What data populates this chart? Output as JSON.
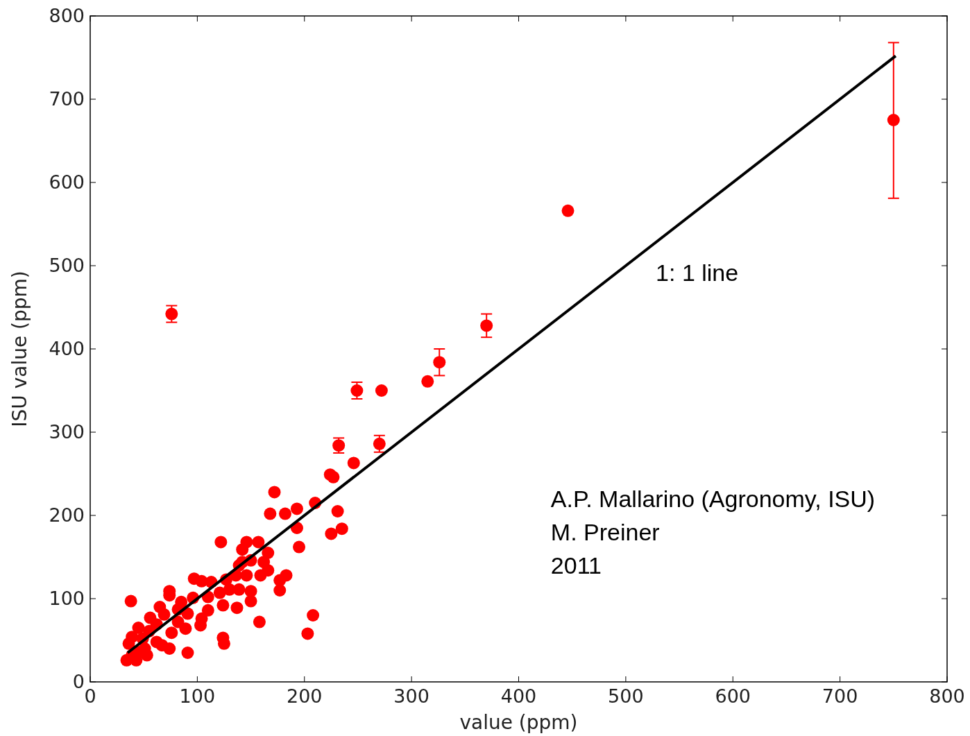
{
  "chart_data": {
    "type": "scatter",
    "xlabel": "value (ppm)",
    "ylabel": "ISU value (ppm)",
    "xlim": [
      0,
      800
    ],
    "ylim": [
      0,
      800
    ],
    "xticks": [
      0,
      100,
      200,
      300,
      400,
      500,
      600,
      700,
      800
    ],
    "yticks": [
      0,
      100,
      200,
      300,
      400,
      500,
      600,
      700,
      800
    ],
    "grid": false,
    "annotations": [
      "1: 1 line",
      "A.P. Mallarino (Agronomy, ISU)",
      "M. Preiner",
      "2011"
    ],
    "series": [
      {
        "color": "#ff0000",
        "marker": "circle",
        "x": [
          76,
          38,
          122,
          172,
          168,
          182,
          193,
          193,
          195,
          210,
          224,
          227,
          246,
          232,
          231,
          225,
          235,
          249,
          272,
          270,
          315,
          326,
          370,
          446,
          750,
          203,
          208,
          158,
          125,
          124,
          91,
          104,
          103,
          89,
          137,
          124,
          150,
          150,
          177,
          183,
          177,
          166,
          166,
          157,
          146,
          142,
          150,
          139,
          136,
          127,
          113,
          104,
          97,
          110,
          96,
          85,
          74,
          74,
          82,
          69,
          62,
          55,
          76,
          82,
          67,
          51,
          44,
          39,
          34,
          36,
          39,
          49,
          45,
          56,
          65,
          91,
          130,
          139,
          146,
          142,
          162,
          159,
          53,
          43,
          62,
          74,
          110,
          121
        ],
        "values": [
          442,
          97,
          168,
          228,
          202,
          202,
          208,
          185,
          162,
          215,
          249,
          246,
          263,
          284,
          205,
          178,
          184,
          350,
          350,
          286,
          361,
          384,
          428,
          566,
          675,
          58,
          80,
          72,
          46,
          53,
          35,
          76,
          68,
          64,
          89,
          92,
          97,
          109,
          110,
          128,
          122,
          134,
          155,
          168,
          168,
          159,
          146,
          140,
          128,
          123,
          120,
          121,
          124,
          102,
          101,
          96,
          104,
          109,
          87,
          81,
          69,
          61,
          59,
          72,
          44,
          40,
          36,
          32,
          26,
          46,
          54,
          52,
          65,
          77,
          90,
          82,
          111,
          111,
          128,
          144,
          144,
          128,
          32,
          26,
          48,
          40,
          86,
          107
        ],
        "errors": [
          10,
          null,
          null,
          null,
          null,
          null,
          null,
          null,
          null,
          null,
          null,
          null,
          null,
          9,
          null,
          null,
          null,
          10,
          null,
          10,
          null,
          16,
          14,
          null,
          [
            581,
            768
          ],
          null,
          null,
          null,
          null,
          null,
          null,
          null,
          null,
          null,
          null,
          null,
          null,
          null,
          null,
          null,
          null,
          null,
          null,
          null,
          null,
          null,
          null,
          null,
          null,
          null,
          null,
          null,
          null,
          null,
          null,
          null,
          null,
          null,
          null,
          null,
          null,
          null,
          null,
          null,
          null,
          null,
          null,
          null,
          null,
          null,
          null,
          null,
          null,
          null,
          null,
          null,
          null,
          null,
          null,
          null,
          null,
          null,
          null,
          null,
          null,
          null,
          null,
          null
        ]
      },
      {
        "type": "line",
        "color": "#000000",
        "x": [
          35,
          752
        ],
        "values": [
          35,
          752
        ],
        "line_style": "solid",
        "marker": "none"
      }
    ]
  }
}
